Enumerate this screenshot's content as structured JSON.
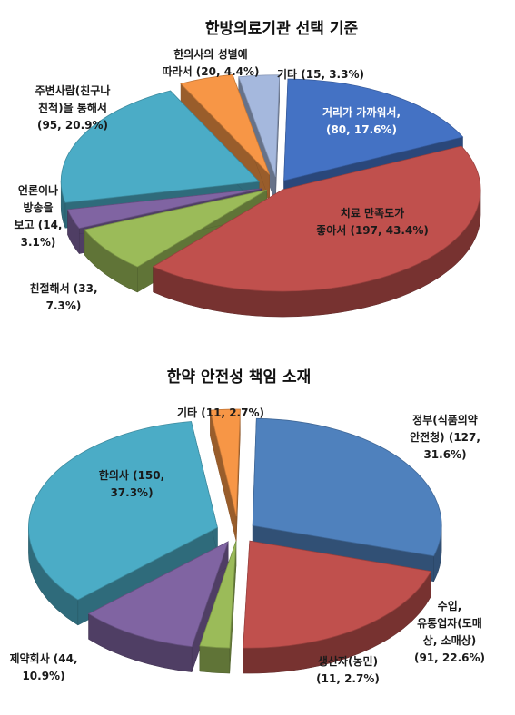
{
  "chart_data": [
    {
      "type": "pie",
      "title": "한방의료기관 선택 기준",
      "slices": [
        {
          "label_lines": [
            "거리가 가까워서,",
            "(80, 17.6%)"
          ],
          "count": 80,
          "percent": 17.6,
          "color": "#4472C4"
        },
        {
          "label_lines": [
            "치료 만족도가",
            "좋아서 (197, 43.4%)"
          ],
          "count": 197,
          "percent": 43.4,
          "color": "#C0504D"
        },
        {
          "label_lines": [
            "친절해서 (33,",
            "7.3%)"
          ],
          "count": 33,
          "percent": 7.3,
          "color": "#9BBB59"
        },
        {
          "label_lines": [
            "언론이나",
            "방송을",
            "보고 (14,",
            "3.1%)"
          ],
          "count": 14,
          "percent": 3.1,
          "color": "#8064A2"
        },
        {
          "label_lines": [
            "주변사람(친구나",
            "친척)을 통해서",
            "(95, 20.9%)"
          ],
          "count": 95,
          "percent": 20.9,
          "color": "#4BACC6"
        },
        {
          "label_lines": [
            "한의사의 성별에",
            "따라서 (20, 4.4%)"
          ],
          "count": 20,
          "percent": 4.4,
          "color": "#F79646"
        },
        {
          "label_lines": [
            "기타 (15, 3.3%)"
          ],
          "count": 15,
          "percent": 3.3,
          "color": "#A5B8DD"
        }
      ]
    },
    {
      "type": "pie",
      "title": "한약 안전성 책임 소재",
      "slices": [
        {
          "label_lines": [
            "정부(식품의약",
            "안전청) (127,",
            "31.6%)"
          ],
          "count": 127,
          "percent": 31.6,
          "color": "#4F81BD"
        },
        {
          "label_lines": [
            "수입,",
            "유통업자(도매",
            "상, 소매상)",
            "(91, 22.6%)"
          ],
          "count": 91,
          "percent": 22.6,
          "color": "#C0504D"
        },
        {
          "label_lines": [
            "생산자(농민)",
            "(11, 2.7%)"
          ],
          "count": 11,
          "percent": 2.7,
          "color": "#9BBB59"
        },
        {
          "label_lines": [
            "제약회사 (44,",
            "10.9%)"
          ],
          "count": 44,
          "percent": 10.9,
          "color": "#8064A2"
        },
        {
          "label_lines": [
            "한의사 (150,",
            "37.3%)"
          ],
          "count": 150,
          "percent": 37.3,
          "color": "#4BACC6"
        },
        {
          "label_lines": [
            "기타 (11, 2.7%)"
          ],
          "count": 11,
          "percent": 2.7,
          "color": "#F79646"
        }
      ]
    }
  ]
}
